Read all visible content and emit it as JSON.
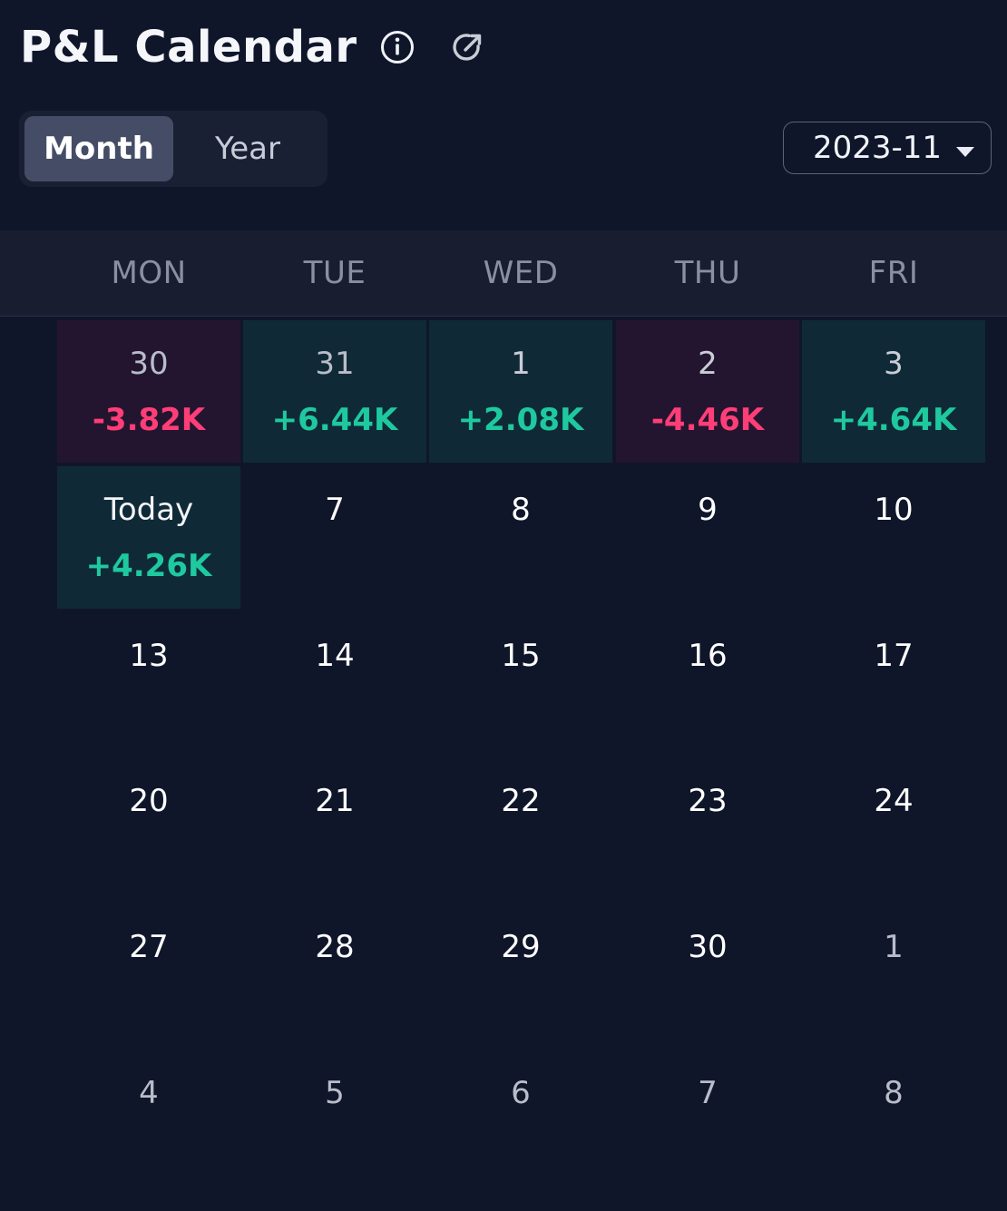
{
  "header": {
    "title": "P&L Calendar",
    "info_icon": "info-circle-icon",
    "share_icon": "share-export-icon"
  },
  "view_toggle": {
    "options": [
      "Month",
      "Year"
    ],
    "selected": "Month"
  },
  "month_picker": {
    "value": "2023-11",
    "icon": "caret-down-icon"
  },
  "weekdays": [
    "MON",
    "TUE",
    "WED",
    "THU",
    "FRI"
  ],
  "colors": {
    "positive": "#1fc9a0",
    "negative": "#ff3e78",
    "positive_bg": "#0f2a36",
    "negative_bg": "#231530",
    "background": "#10162a"
  },
  "weeks": [
    [
      {
        "day": "30",
        "pnl": "-3.82K",
        "sign": "neg",
        "other_month": true
      },
      {
        "day": "31",
        "pnl": "+6.44K",
        "sign": "pos",
        "other_month": true
      },
      {
        "day": "1",
        "pnl": "+2.08K",
        "sign": "pos"
      },
      {
        "day": "2",
        "pnl": "-4.46K",
        "sign": "neg"
      },
      {
        "day": "3",
        "pnl": "+4.64K",
        "sign": "pos"
      }
    ],
    [
      {
        "day": "Today",
        "pnl": "+4.26K",
        "sign": "pos",
        "today": true
      },
      {
        "day": "7"
      },
      {
        "day": "8"
      },
      {
        "day": "9"
      },
      {
        "day": "10"
      }
    ],
    [
      {
        "day": "13"
      },
      {
        "day": "14"
      },
      {
        "day": "15"
      },
      {
        "day": "16"
      },
      {
        "day": "17"
      }
    ],
    [
      {
        "day": "20"
      },
      {
        "day": "21"
      },
      {
        "day": "22"
      },
      {
        "day": "23"
      },
      {
        "day": "24"
      }
    ],
    [
      {
        "day": "27"
      },
      {
        "day": "28"
      },
      {
        "day": "29"
      },
      {
        "day": "30"
      },
      {
        "day": "1",
        "other_month": true
      }
    ],
    [
      {
        "day": "4",
        "other_month": true
      },
      {
        "day": "5",
        "other_month": true
      },
      {
        "day": "6",
        "other_month": true
      },
      {
        "day": "7",
        "other_month": true
      },
      {
        "day": "8",
        "other_month": true
      }
    ]
  ]
}
